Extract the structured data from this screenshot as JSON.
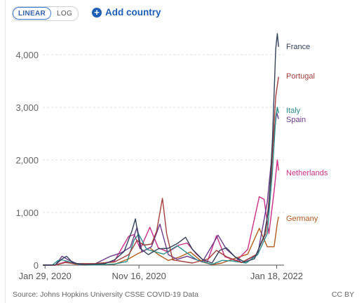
{
  "controls": {
    "linear_label": "LINEAR",
    "log_label": "LOG",
    "add_country_label": "Add country",
    "active_scale": "linear"
  },
  "chart_data": {
    "type": "line",
    "yscale": "linear",
    "ylim": [
      0,
      4400
    ],
    "xlim": [
      "2020-01-22",
      "2022-02-10"
    ],
    "yticks": [
      0,
      1000,
      2000,
      3000,
      4000
    ],
    "ytick_labels": [
      "0",
      "1,000",
      "2,000",
      "3,000",
      "4,000"
    ],
    "xticks": [
      "2020-01-29",
      "2020-11-16",
      "2022-01-18"
    ],
    "xtick_labels": [
      "Jan 29, 2020",
      "Nov 16, 2020",
      "Jan 18, 2022"
    ],
    "grid": "horizontal-dashed",
    "legend": "inline-labels-right",
    "series": [
      {
        "name": "France",
        "color": "#33425b",
        "points": [
          [
            "2020-01-22",
            0
          ],
          [
            "2020-03-01",
            5
          ],
          [
            "2020-03-20",
            110
          ],
          [
            "2020-04-05",
            170
          ],
          [
            "2020-04-25",
            40
          ],
          [
            "2020-06-01",
            10
          ],
          [
            "2020-08-01",
            25
          ],
          [
            "2020-09-01",
            100
          ],
          [
            "2020-10-01",
            260
          ],
          [
            "2020-10-25",
            650
          ],
          [
            "2020-11-05",
            880
          ],
          [
            "2020-11-20",
            320
          ],
          [
            "2020-12-15",
            200
          ],
          [
            "2021-01-15",
            310
          ],
          [
            "2021-02-15",
            320
          ],
          [
            "2021-03-15",
            410
          ],
          [
            "2021-04-10",
            530
          ],
          [
            "2021-05-01",
            300
          ],
          [
            "2021-06-01",
            110
          ],
          [
            "2021-07-01",
            40
          ],
          [
            "2021-07-25",
            280
          ],
          [
            "2021-08-15",
            330
          ],
          [
            "2021-09-10",
            160
          ],
          [
            "2021-10-10",
            60
          ],
          [
            "2021-11-10",
            120
          ],
          [
            "2021-12-10",
            560
          ],
          [
            "2021-12-25",
            1100
          ],
          [
            "2022-01-05",
            2400
          ],
          [
            "2022-01-15",
            4100
          ],
          [
            "2022-01-20",
            4400
          ],
          [
            "2022-01-24",
            4150
          ]
        ]
      },
      {
        "name": "Portugal",
        "color": "#a2413c",
        "points": [
          [
            "2020-01-22",
            0
          ],
          [
            "2020-03-01",
            0
          ],
          [
            "2020-04-01",
            50
          ],
          [
            "2020-05-01",
            30
          ],
          [
            "2020-07-01",
            30
          ],
          [
            "2020-09-01",
            60
          ],
          [
            "2020-10-15",
            200
          ],
          [
            "2020-11-10",
            470
          ],
          [
            "2020-12-01",
            380
          ],
          [
            "2020-12-25",
            400
          ],
          [
            "2021-01-10",
            650
          ],
          [
            "2021-01-28",
            1270
          ],
          [
            "2021-02-10",
            600
          ],
          [
            "2021-03-01",
            100
          ],
          [
            "2021-05-01",
            40
          ],
          [
            "2021-06-20",
            120
          ],
          [
            "2021-07-15",
            280
          ],
          [
            "2021-08-15",
            160
          ],
          [
            "2021-10-01",
            50
          ],
          [
            "2021-11-15",
            200
          ],
          [
            "2021-12-15",
            600
          ],
          [
            "2022-01-01",
            1700
          ],
          [
            "2022-01-15",
            3200
          ],
          [
            "2022-01-24",
            3580
          ]
        ]
      },
      {
        "name": "Italy",
        "color": "#2c8e8a",
        "points": [
          [
            "2020-01-22",
            0
          ],
          [
            "2020-02-20",
            0
          ],
          [
            "2020-03-10",
            90
          ],
          [
            "2020-03-22",
            100
          ],
          [
            "2020-04-15",
            60
          ],
          [
            "2020-05-15",
            15
          ],
          [
            "2020-07-01",
            3
          ],
          [
            "2020-09-01",
            20
          ],
          [
            "2020-10-10",
            70
          ],
          [
            "2020-11-01",
            480
          ],
          [
            "2020-11-15",
            590
          ],
          [
            "2020-12-10",
            300
          ],
          [
            "2021-01-01",
            260
          ],
          [
            "2021-02-01",
            210
          ],
          [
            "2021-03-15",
            370
          ],
          [
            "2021-04-15",
            230
          ],
          [
            "2021-05-15",
            100
          ],
          [
            "2021-07-01",
            15
          ],
          [
            "2021-08-01",
            90
          ],
          [
            "2021-09-01",
            80
          ],
          [
            "2021-10-15",
            40
          ],
          [
            "2021-11-20",
            200
          ],
          [
            "2021-12-20",
            600
          ],
          [
            "2022-01-05",
            1800
          ],
          [
            "2022-01-15",
            2800
          ],
          [
            "2022-01-20",
            3000
          ],
          [
            "2022-01-24",
            2890
          ]
        ]
      },
      {
        "name": "Spain",
        "color": "#6b3a8a",
        "points": [
          [
            "2020-01-22",
            0
          ],
          [
            "2020-03-01",
            2
          ],
          [
            "2020-03-22",
            170
          ],
          [
            "2020-04-10",
            100
          ],
          [
            "2020-05-15",
            10
          ],
          [
            "2020-07-01",
            20
          ],
          [
            "2020-08-20",
            170
          ],
          [
            "2020-09-20",
            230
          ],
          [
            "2020-10-20",
            340
          ],
          [
            "2020-11-10",
            720
          ],
          [
            "2020-11-25",
            250
          ],
          [
            "2020-12-25",
            350
          ],
          [
            "2021-01-20",
            780
          ],
          [
            "2021-02-15",
            200
          ],
          [
            "2021-03-15",
            110
          ],
          [
            "2021-04-15",
            170
          ],
          [
            "2021-06-01",
            60
          ],
          [
            "2021-07-20",
            570
          ],
          [
            "2021-08-15",
            300
          ],
          [
            "2021-10-01",
            50
          ],
          [
            "2021-11-20",
            200
          ],
          [
            "2021-12-20",
            1200
          ],
          [
            "2022-01-10",
            2500
          ],
          [
            "2022-01-18",
            2900
          ],
          [
            "2022-01-24",
            2780
          ]
        ]
      },
      {
        "name": "Netherlands",
        "color": "#ca2e86",
        "points": [
          [
            "2020-01-22",
            0
          ],
          [
            "2020-03-01",
            1
          ],
          [
            "2020-04-05",
            70
          ],
          [
            "2020-05-01",
            30
          ],
          [
            "2020-07-01",
            5
          ],
          [
            "2020-09-01",
            80
          ],
          [
            "2020-10-15",
            550
          ],
          [
            "2020-11-01",
            580
          ],
          [
            "2020-11-20",
            310
          ],
          [
            "2020-12-20",
            720
          ],
          [
            "2021-01-15",
            330
          ],
          [
            "2021-02-15",
            250
          ],
          [
            "2021-03-20",
            380
          ],
          [
            "2021-04-15",
            420
          ],
          [
            "2021-05-15",
            200
          ],
          [
            "2021-06-15",
            40
          ],
          [
            "2021-07-15",
            560
          ],
          [
            "2021-08-10",
            160
          ],
          [
            "2021-09-15",
            80
          ],
          [
            "2021-10-20",
            300
          ],
          [
            "2021-11-25",
            1300
          ],
          [
            "2021-12-10",
            1250
          ],
          [
            "2021-12-25",
            600
          ],
          [
            "2022-01-10",
            1400
          ],
          [
            "2022-01-20",
            2000
          ],
          [
            "2022-01-24",
            1800
          ]
        ]
      },
      {
        "name": "Germany",
        "color": "#b05c1d",
        "points": [
          [
            "2020-01-22",
            0
          ],
          [
            "2020-03-01",
            1
          ],
          [
            "2020-04-01",
            60
          ],
          [
            "2020-05-01",
            20
          ],
          [
            "2020-07-01",
            5
          ],
          [
            "2020-09-01",
            15
          ],
          [
            "2020-10-15",
            120
          ],
          [
            "2020-11-10",
            210
          ],
          [
            "2020-12-20",
            330
          ],
          [
            "2021-01-15",
            200
          ],
          [
            "2021-02-15",
            90
          ],
          [
            "2021-03-20",
            150
          ],
          [
            "2021-04-25",
            250
          ],
          [
            "2021-06-01",
            60
          ],
          [
            "2021-07-01",
            10
          ],
          [
            "2021-08-01",
            40
          ],
          [
            "2021-09-01",
            110
          ],
          [
            "2021-10-20",
            210
          ],
          [
            "2021-11-25",
            700
          ],
          [
            "2021-12-20",
            350
          ],
          [
            "2022-01-10",
            350
          ],
          [
            "2022-01-20",
            800
          ],
          [
            "2022-01-24",
            920
          ]
        ]
      }
    ]
  },
  "footer": {
    "source": "Source: Johns Hopkins University CSSE COVID-19 Data",
    "license": "CC BY"
  }
}
